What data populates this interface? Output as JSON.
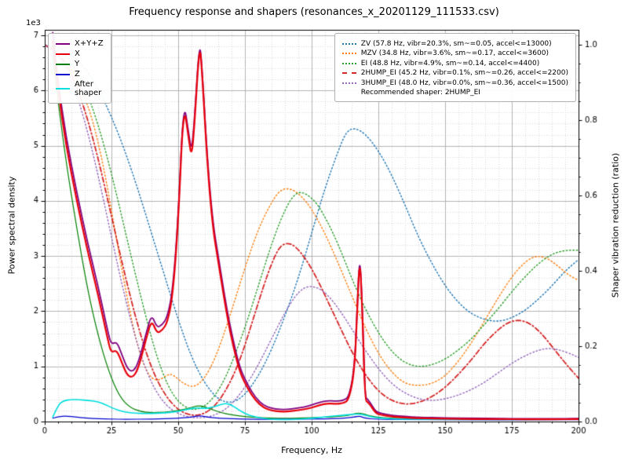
{
  "chart_data": {
    "type": "line",
    "title": "Frequency response and shapers (resonances_x_20201129_111533.csv)",
    "xlabel": "Frequency, Hz",
    "ylabel_left": "Power spectral density",
    "ylabel_right": "Shaper vibration reduction (ratio)",
    "left_offset_text": "1e3",
    "legend_note": "Recommended shaper: 2HUMP_EI",
    "x_range": [
      0,
      200
    ],
    "left_y_range": [
      0,
      7100
    ],
    "right_y_range": [
      0,
      1.04
    ],
    "x_ticks": [
      0,
      25,
      50,
      75,
      100,
      125,
      150,
      175,
      200
    ],
    "x_tick_labels": [
      "0",
      "25",
      "50",
      "75",
      "100",
      "125",
      "150",
      "175",
      "200"
    ],
    "x_minor_step": 5,
    "left_ticks": [
      0,
      1000,
      2000,
      3000,
      4000,
      5000,
      6000,
      7000
    ],
    "left_tick_labels": [
      "0",
      "1",
      "2",
      "3",
      "4",
      "5",
      "6",
      "7"
    ],
    "left_minor_step": 200,
    "right_ticks": [
      0,
      0.2,
      0.4,
      0.6,
      0.8,
      1.0
    ],
    "right_tick_labels": [
      "0.0",
      "0.2",
      "0.4",
      "0.6",
      "0.8",
      "1.0"
    ],
    "right_minor_step": 0.05,
    "grid": true,
    "psd_draw_order": [
      2,
      3,
      4,
      0,
      1
    ],
    "psd_series": [
      {
        "name": "sum",
        "label": "X+Y+Z",
        "color": "#800080",
        "dash": "solid",
        "width": 1.8,
        "x": [
          3,
          5,
          8,
          12,
          16,
          20,
          24,
          25,
          27,
          29,
          31,
          33,
          35,
          38,
          40,
          42,
          44,
          46,
          48,
          50,
          52,
          54,
          55,
          56,
          58,
          59,
          61,
          63,
          65,
          68,
          70,
          73,
          76,
          79,
          82,
          85,
          88,
          91,
          94,
          97,
          100,
          103,
          106,
          109,
          112,
          114,
          116,
          117,
          118,
          119,
          120,
          121,
          122,
          124,
          126,
          130,
          135,
          140,
          150,
          160,
          170,
          180,
          190,
          200
        ],
        "y": [
          7050,
          6150,
          5150,
          4150,
          3250,
          2450,
          1550,
          1400,
          1450,
          1200,
          950,
          900,
          1050,
          1600,
          1950,
          1700,
          1750,
          1900,
          2400,
          3700,
          5850,
          5200,
          4900,
          5400,
          6950,
          6350,
          4700,
          3600,
          3000,
          2100,
          1600,
          980,
          670,
          430,
          290,
          240,
          220,
          220,
          240,
          260,
          300,
          350,
          380,
          370,
          380,
          450,
          950,
          1950,
          3100,
          2050,
          450,
          400,
          340,
          180,
          150,
          110,
          90,
          80,
          65,
          60,
          55,
          50,
          50,
          55
        ]
      },
      {
        "name": "x",
        "label": "X",
        "color": "#e8000b",
        "dash": "solid",
        "width": 2.2,
        "x": [
          3,
          5,
          8,
          12,
          16,
          20,
          24,
          25,
          27,
          29,
          31,
          33,
          35,
          38,
          40,
          42,
          44,
          46,
          48,
          50,
          52,
          54,
          55,
          56,
          58,
          59,
          61,
          63,
          65,
          68,
          70,
          73,
          76,
          79,
          82,
          85,
          88,
          91,
          94,
          97,
          100,
          103,
          106,
          109,
          112,
          114,
          116,
          117,
          118,
          119,
          120,
          121,
          122,
          124,
          126,
          130,
          135,
          140,
          150,
          160,
          170,
          180,
          190,
          200
        ],
        "y": [
          6900,
          6000,
          5000,
          4000,
          3100,
          2300,
          1400,
          1250,
          1300,
          1050,
          830,
          800,
          950,
          1500,
          1850,
          1600,
          1650,
          1800,
          2300,
          3600,
          5800,
          5100,
          4800,
          5300,
          6900,
          6300,
          4600,
          3500,
          2900,
          2000,
          1500,
          900,
          600,
          380,
          250,
          200,
          180,
          180,
          200,
          220,
          250,
          300,
          330,
          320,
          330,
          400,
          900,
          1900,
          3050,
          2000,
          400,
          350,
          300,
          150,
          120,
          90,
          70,
          60,
          50,
          45,
          45,
          40,
          40,
          45
        ]
      },
      {
        "name": "y",
        "label": "Y",
        "color": "#008000",
        "dash": "solid",
        "width": 1.2,
        "x": [
          3,
          5,
          8,
          12,
          16,
          20,
          24,
          28,
          32,
          36,
          40,
          45,
          50,
          54,
          58,
          62,
          66,
          70,
          75,
          80,
          85,
          90,
          95,
          100,
          105,
          110,
          114,
          118,
          122,
          130,
          140,
          150,
          160,
          180,
          200
        ],
        "y": [
          6600,
          5800,
          4700,
          3500,
          2400,
          1550,
          900,
          450,
          250,
          180,
          160,
          170,
          200,
          240,
          300,
          230,
          160,
          120,
          90,
          70,
          60,
          60,
          60,
          70,
          80,
          90,
          110,
          170,
          90,
          60,
          50,
          45,
          40,
          40,
          40
        ]
      },
      {
        "name": "z",
        "label": "Z",
        "color": "#0000cd",
        "dash": "solid",
        "width": 1.2,
        "x": [
          3,
          5,
          8,
          12,
          16,
          20,
          25,
          30,
          40,
          50,
          55,
          58,
          62,
          70,
          80,
          90,
          100,
          110,
          116,
          118,
          120,
          125,
          140,
          160,
          180,
          200
        ],
        "y": [
          60,
          90,
          100,
          80,
          60,
          50,
          45,
          40,
          45,
          60,
          80,
          110,
          70,
          50,
          40,
          40,
          45,
          50,
          80,
          100,
          60,
          40,
          35,
          30,
          30,
          35
        ]
      },
      {
        "name": "after-shaper",
        "label": "After\nshaper",
        "color": "#00dede",
        "dash": "solid",
        "width": 1.6,
        "x": [
          3,
          5,
          7,
          10,
          13,
          16,
          20,
          23,
          26,
          30,
          34,
          38,
          42,
          46,
          50,
          54,
          57,
          60,
          63,
          66,
          68,
          70,
          73,
          76,
          80,
          84,
          88,
          92,
          96,
          100,
          104,
          108,
          112,
          115,
          118,
          121,
          124,
          128,
          132,
          140,
          150,
          160,
          175,
          190,
          200
        ],
        "y": [
          80,
          300,
          380,
          400,
          395,
          385,
          360,
          300,
          230,
          170,
          150,
          145,
          150,
          160,
          185,
          230,
          250,
          235,
          260,
          310,
          330,
          300,
          200,
          120,
          70,
          45,
          35,
          35,
          45,
          60,
          80,
          100,
          115,
          130,
          140,
          100,
          70,
          55,
          45,
          40,
          38,
          38,
          38,
          38,
          40
        ]
      }
    ],
    "shaper_series": [
      {
        "name": "zv",
        "label": "ZV (57.8 Hz, vibr=20.3%, sm~=0.05, accel<=13000)",
        "color": "#1f77b4",
        "dash": "dotted",
        "width": 1.4,
        "x": [
          0,
          5,
          10,
          15,
          20,
          25,
          30,
          35,
          40,
          45,
          50,
          55,
          60,
          65,
          70,
          75,
          80,
          85,
          90,
          95,
          100,
          105,
          110,
          113,
          116,
          120,
          125,
          130,
          135,
          140,
          145,
          150,
          155,
          160,
          165,
          170,
          175,
          180,
          185,
          190,
          195,
          200
        ],
        "y": [
          1.0,
          0.995,
          0.975,
          0.94,
          0.885,
          0.81,
          0.72,
          0.615,
          0.5,
          0.385,
          0.27,
          0.17,
          0.1,
          0.058,
          0.048,
          0.07,
          0.12,
          0.19,
          0.28,
          0.38,
          0.5,
          0.62,
          0.72,
          0.77,
          0.78,
          0.765,
          0.72,
          0.655,
          0.575,
          0.49,
          0.42,
          0.36,
          0.315,
          0.285,
          0.27,
          0.265,
          0.275,
          0.295,
          0.325,
          0.36,
          0.4,
          0.43
        ]
      },
      {
        "name": "mzv",
        "label": "MZV (34.8 Hz, vibr=3.6%, sm~=0.17, accel<=3600)",
        "color": "#ff7f0e",
        "dash": "dotted",
        "width": 1.4,
        "x": [
          0,
          5,
          10,
          15,
          18,
          22,
          26,
          30,
          34,
          38,
          42,
          46,
          48,
          52,
          56,
          60,
          64,
          68,
          72,
          76,
          80,
          84,
          88,
          92,
          96,
          100,
          105,
          110,
          115,
          120,
          125,
          130,
          135,
          140,
          145,
          150,
          155,
          160,
          165,
          170,
          175,
          180,
          184,
          188,
          192,
          196,
          200
        ],
        "y": [
          1.0,
          0.985,
          0.94,
          0.86,
          0.8,
          0.68,
          0.52,
          0.36,
          0.22,
          0.13,
          0.105,
          0.125,
          0.125,
          0.1,
          0.09,
          0.115,
          0.17,
          0.25,
          0.34,
          0.43,
          0.51,
          0.57,
          0.615,
          0.62,
          0.6,
          0.565,
          0.5,
          0.42,
          0.335,
          0.25,
          0.18,
          0.13,
          0.1,
          0.095,
          0.1,
          0.12,
          0.16,
          0.21,
          0.27,
          0.33,
          0.385,
          0.425,
          0.44,
          0.435,
          0.415,
          0.39,
          0.375
        ]
      },
      {
        "name": "ei",
        "label": "EI (48.8 Hz, vibr=4.9%, sm~=0.14, accel<=4400)",
        "color": "#2ca02c",
        "dash": "dotted",
        "width": 1.4,
        "x": [
          0,
          5,
          10,
          15,
          20,
          25,
          30,
          35,
          40,
          44,
          48,
          52,
          56,
          60,
          64,
          68,
          72,
          76,
          80,
          84,
          88,
          92,
          95,
          98,
          102,
          106,
          110,
          115,
          120,
          125,
          130,
          135,
          140,
          145,
          150,
          155,
          160,
          165,
          170,
          175,
          180,
          185,
          190,
          195,
          200
        ],
        "y": [
          1.0,
          0.99,
          0.955,
          0.89,
          0.79,
          0.66,
          0.51,
          0.36,
          0.22,
          0.13,
          0.07,
          0.04,
          0.03,
          0.04,
          0.07,
          0.12,
          0.19,
          0.27,
          0.36,
          0.45,
          0.53,
          0.59,
          0.61,
          0.605,
          0.58,
          0.53,
          0.47,
          0.38,
          0.3,
          0.235,
          0.185,
          0.155,
          0.145,
          0.15,
          0.165,
          0.19,
          0.22,
          0.26,
          0.3,
          0.345,
          0.385,
          0.42,
          0.445,
          0.455,
          0.455
        ]
      },
      {
        "name": "2hump-ei",
        "label": "2HUMP_EI (45.2 Hz, vibr=0.1%, sm~=0.26, accel<=2200)",
        "color": "#d62728",
        "dash": "dashdot",
        "width": 1.8,
        "x": [
          0,
          5,
          10,
          15,
          20,
          25,
          30,
          35,
          40,
          45,
          50,
          55,
          60,
          65,
          70,
          74,
          78,
          82,
          85,
          88,
          91,
          94,
          98,
          102,
          106,
          110,
          115,
          120,
          125,
          130,
          135,
          140,
          145,
          150,
          155,
          160,
          165,
          170,
          174,
          178,
          182,
          186,
          190,
          195,
          200
        ],
        "y": [
          1.0,
          0.98,
          0.925,
          0.83,
          0.7,
          0.545,
          0.39,
          0.25,
          0.14,
          0.07,
          0.03,
          0.015,
          0.02,
          0.05,
          0.11,
          0.18,
          0.27,
          0.36,
          0.42,
          0.465,
          0.475,
          0.465,
          0.43,
          0.38,
          0.32,
          0.26,
          0.185,
          0.125,
          0.08,
          0.055,
          0.045,
          0.05,
          0.065,
          0.09,
          0.125,
          0.165,
          0.21,
          0.245,
          0.265,
          0.27,
          0.26,
          0.235,
          0.2,
          0.155,
          0.115
        ]
      },
      {
        "name": "3hump-ei",
        "label": "3HUMP_EI (48.0 Hz, vibr=0.0%, sm~=0.36, accel<=1500)",
        "color": "#9467bd",
        "dash": "dotted",
        "width": 1.4,
        "x": [
          0,
          5,
          10,
          15,
          20,
          25,
          30,
          35,
          40,
          45,
          50,
          55,
          60,
          65,
          70,
          75,
          80,
          85,
          90,
          94,
          97,
          100,
          104,
          108,
          112,
          116,
          120,
          125,
          130,
          135,
          140,
          145,
          150,
          155,
          160,
          165,
          170,
          175,
          180,
          185,
          189,
          193,
          197,
          200
        ],
        "y": [
          1.0,
          0.975,
          0.91,
          0.8,
          0.655,
          0.49,
          0.33,
          0.195,
          0.1,
          0.045,
          0.02,
          0.01,
          0.01,
          0.02,
          0.045,
          0.09,
          0.15,
          0.22,
          0.29,
          0.335,
          0.355,
          0.36,
          0.35,
          0.32,
          0.28,
          0.235,
          0.19,
          0.14,
          0.1,
          0.075,
          0.06,
          0.055,
          0.06,
          0.07,
          0.085,
          0.105,
          0.13,
          0.155,
          0.175,
          0.19,
          0.195,
          0.19,
          0.18,
          0.17
        ]
      }
    ]
  }
}
